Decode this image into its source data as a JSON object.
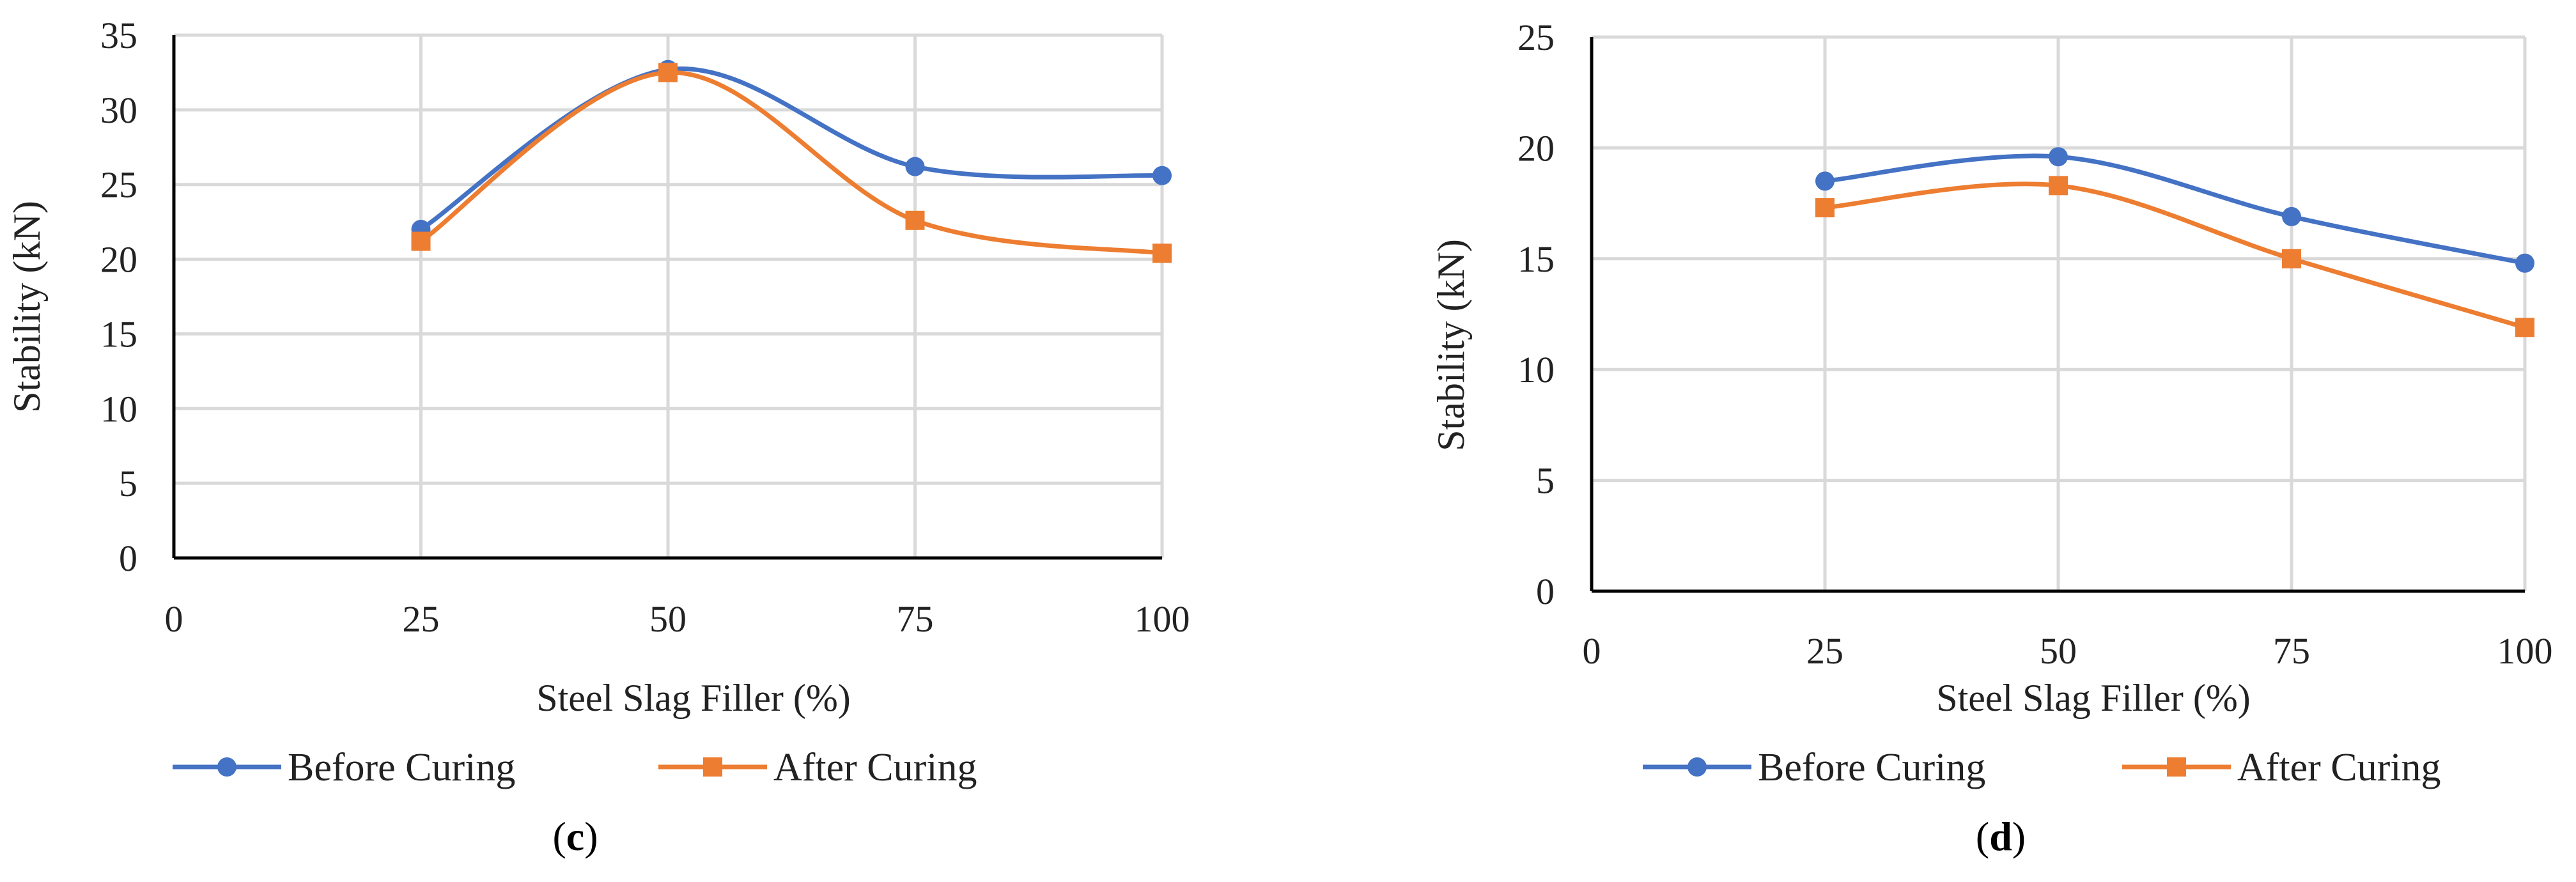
{
  "chart_data": [
    {
      "id": "c",
      "type": "line",
      "x": [
        25,
        50,
        75,
        100
      ],
      "xlim": [
        0,
        100
      ],
      "xticks": [
        0,
        25,
        50,
        75,
        100
      ],
      "ylim": [
        0,
        35
      ],
      "yticks": [
        0,
        5,
        10,
        15,
        20,
        25,
        30,
        35
      ],
      "xlabel": "Steel Slag Filler (%)",
      "ylabel": "Stability (kN)",
      "grid": true,
      "series": [
        {
          "name": "Before Curing",
          "color": "#4472C4",
          "marker": "circle",
          "values": [
            22.0,
            32.7,
            26.2,
            25.6
          ]
        },
        {
          "name": "After Curing",
          "color": "#ED7D31",
          "marker": "square",
          "values": [
            21.2,
            32.5,
            22.6,
            20.4
          ]
        }
      ],
      "legend": "bottom",
      "caption_open": "(",
      "caption_letter": "c",
      "caption_close": ")"
    },
    {
      "id": "d",
      "type": "line",
      "x": [
        25,
        50,
        75,
        100
      ],
      "xlim": [
        0,
        100
      ],
      "xticks": [
        0,
        25,
        50,
        75,
        100
      ],
      "ylim": [
        0,
        25
      ],
      "yticks": [
        0,
        5,
        10,
        15,
        20,
        25
      ],
      "xlabel": "Steel Slag Filler (%)",
      "ylabel": "Stability (kN)",
      "grid": true,
      "series": [
        {
          "name": "Before Curing",
          "color": "#4472C4",
          "marker": "circle",
          "values": [
            18.5,
            19.6,
            16.9,
            14.8
          ]
        },
        {
          "name": "After Curing",
          "color": "#ED7D31",
          "marker": "square",
          "values": [
            17.3,
            18.3,
            15.0,
            11.9
          ]
        }
      ],
      "legend": "bottom",
      "caption_open": "(",
      "caption_letter": "d",
      "caption_close": ")"
    }
  ]
}
